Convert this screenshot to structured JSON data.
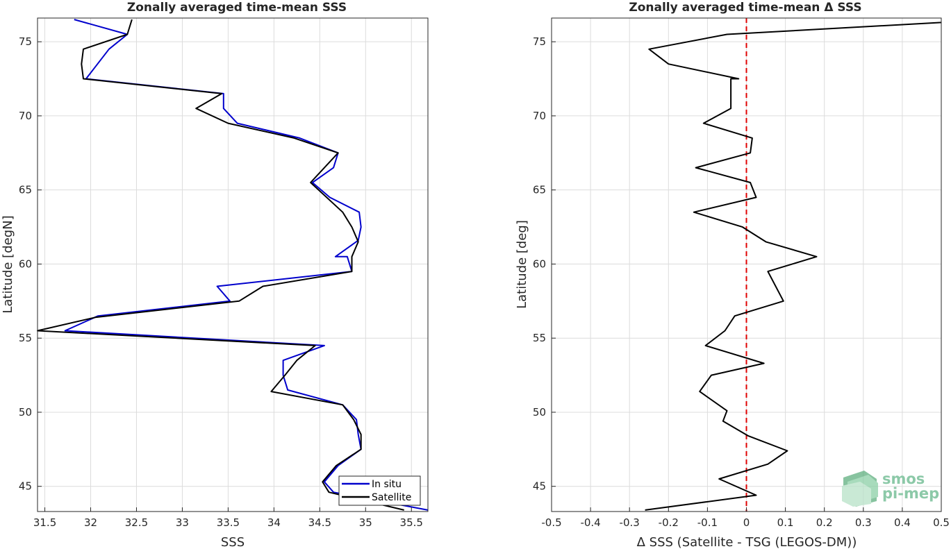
{
  "chart_data": [
    {
      "type": "line",
      "title": "Zonally averaged time-mean SSS",
      "xlabel": "SSS",
      "ylabel": "Latitude [degN]",
      "xlim": [
        31.42,
        35.68
      ],
      "ylim": [
        43.3,
        76.6
      ],
      "xticks": [
        "31.5",
        "32",
        "32.5",
        "33",
        "33.5",
        "34",
        "34.5",
        "35",
        "35.5"
      ],
      "yticks": [
        "45",
        "50",
        "55",
        "60",
        "65",
        "70",
        "75"
      ],
      "grid": true,
      "legend_position": "bottom-right",
      "series": [
        {
          "name": "In situ",
          "color": "#0000cc",
          "points": [
            [
              35.68,
              43.4
            ],
            [
              34.65,
              44.6
            ],
            [
              34.55,
              45.3
            ],
            [
              34.7,
              46.4
            ],
            [
              34.95,
              47.5
            ],
            [
              34.92,
              48.5
            ],
            [
              34.9,
              49.5
            ],
            [
              34.75,
              50.5
            ],
            [
              34.15,
              51.5
            ],
            [
              34.1,
              52.5
            ],
            [
              34.1,
              53.5
            ],
            [
              34.55,
              54.5
            ],
            [
              31.72,
              55.5
            ],
            [
              32.08,
              56.5
            ],
            [
              33.52,
              57.5
            ],
            [
              33.38,
              58.5
            ],
            [
              34.85,
              59.5
            ],
            [
              34.8,
              60.5
            ],
            [
              34.67,
              60.5
            ],
            [
              34.92,
              61.6
            ],
            [
              34.95,
              62.5
            ],
            [
              34.93,
              63.5
            ],
            [
              34.61,
              64.5
            ],
            [
              34.42,
              65.5
            ],
            [
              34.65,
              66.5
            ],
            [
              34.7,
              67.5
            ],
            [
              34.28,
              68.5
            ],
            [
              33.6,
              69.5
            ],
            [
              33.45,
              70.5
            ],
            [
              33.45,
              71.5
            ],
            [
              31.95,
              72.5
            ],
            [
              32.2,
              74.5
            ],
            [
              32.4,
              75.5
            ],
            [
              31.82,
              76.5
            ]
          ]
        },
        {
          "name": "Satellite",
          "color": "#000000",
          "points": [
            [
              35.42,
              43.4
            ],
            [
              34.6,
              44.6
            ],
            [
              34.53,
              45.3
            ],
            [
              34.68,
              46.4
            ],
            [
              34.95,
              47.5
            ],
            [
              34.95,
              48.5
            ],
            [
              34.87,
              49.5
            ],
            [
              34.75,
              50.5
            ],
            [
              33.97,
              51.4
            ],
            [
              34.12,
              52.5
            ],
            [
              34.25,
              53.5
            ],
            [
              34.45,
              54.5
            ],
            [
              31.42,
              55.5
            ],
            [
              32.05,
              56.4
            ],
            [
              33.62,
              57.5
            ],
            [
              33.88,
              58.5
            ],
            [
              34.85,
              59.5
            ],
            [
              34.85,
              60.5
            ],
            [
              34.92,
              61.5
            ],
            [
              34.85,
              62.5
            ],
            [
              34.75,
              63.5
            ],
            [
              34.4,
              65.5
            ],
            [
              34.7,
              67.5
            ],
            [
              34.22,
              68.5
            ],
            [
              33.5,
              69.5
            ],
            [
              33.15,
              70.5
            ],
            [
              33.43,
              71.5
            ],
            [
              31.92,
              72.5
            ],
            [
              31.9,
              73.5
            ],
            [
              31.92,
              74.5
            ],
            [
              32.4,
              75.5
            ],
            [
              32.45,
              76.5
            ]
          ]
        }
      ]
    },
    {
      "type": "line",
      "title": "Zonally averaged time-mean Δ SSS",
      "xlabel": "Δ SSS (Satellite - TSG (LEGOS-DM))",
      "ylabel": "Latitude [deg]",
      "xlim": [
        -0.5,
        0.5
      ],
      "ylim": [
        43.3,
        76.6
      ],
      "xticks": [
        "-0.5",
        "-0.4",
        "-0.3",
        "-0.2",
        "-0.1",
        "0",
        "0.1",
        "0.2",
        "0.3",
        "0.4",
        "0.5"
      ],
      "yticks": [
        "45",
        "50",
        "55",
        "60",
        "65",
        "70",
        "75"
      ],
      "grid": true,
      "zero_line": {
        "x": 0,
        "color": "#e00000",
        "style": "dashed"
      },
      "series": [
        {
          "name": "",
          "color": "#000000",
          "points": [
            [
              -0.26,
              43.4
            ],
            [
              0.025,
              44.4
            ],
            [
              -0.07,
              45.5
            ],
            [
              0.055,
              46.5
            ],
            [
              0.105,
              47.4
            ],
            [
              0.005,
              48.4
            ],
            [
              -0.06,
              49.4
            ],
            [
              -0.05,
              50.1
            ],
            [
              -0.12,
              51.4
            ],
            [
              -0.09,
              52.5
            ],
            [
              0.045,
              53.3
            ],
            [
              -0.105,
              54.5
            ],
            [
              -0.055,
              55.5
            ],
            [
              -0.03,
              56.5
            ],
            [
              0.095,
              57.5
            ],
            [
              0.055,
              59.5
            ],
            [
              0.18,
              60.5
            ],
            [
              0.05,
              61.5
            ],
            [
              -0.01,
              62.5
            ],
            [
              -0.135,
              63.5
            ],
            [
              0.025,
              64.5
            ],
            [
              0.01,
              65.5
            ],
            [
              -0.13,
              66.5
            ],
            [
              0.01,
              67.5
            ],
            [
              0.015,
              68.5
            ],
            [
              -0.11,
              69.5
            ],
            [
              -0.04,
              70.5
            ],
            [
              -0.04,
              71.5
            ],
            [
              -0.04,
              72.5
            ],
            [
              -0.02,
              72.5
            ],
            [
              -0.2,
              73.5
            ],
            [
              -0.25,
              74.5
            ],
            [
              -0.05,
              75.5
            ],
            [
              0.5,
              76.3
            ]
          ]
        }
      ]
    }
  ],
  "logo": {
    "line1": "smos",
    "line2": "pi-mep",
    "color": "#8cc9a8"
  }
}
